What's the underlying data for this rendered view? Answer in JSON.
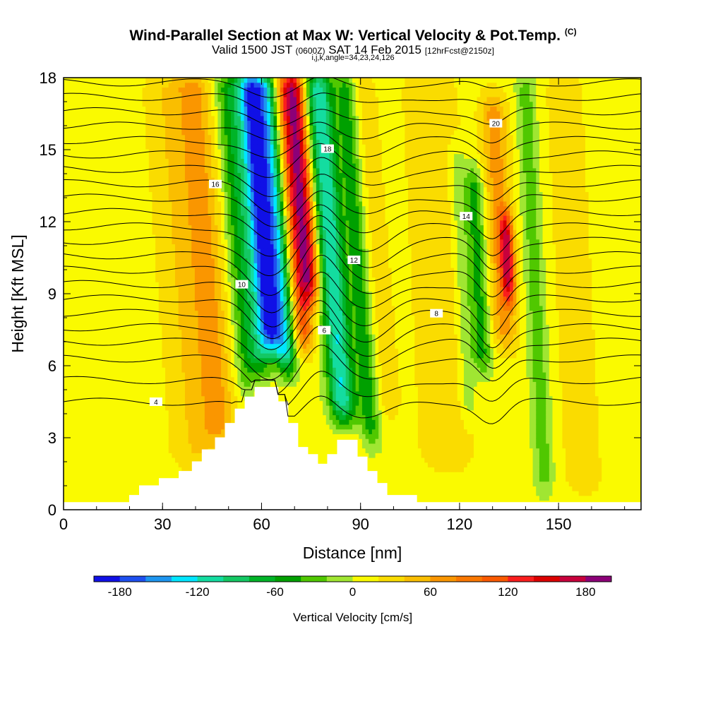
{
  "header": {
    "title": "Wind-Parallel Section at Max W: Vertical Velocity & Pot.Temp.",
    "title_tag": "(C)",
    "subtitle_a": "Valid 1500 JST",
    "subtitle_b": "(0600Z)",
    "subtitle_c": "SAT 14 Feb 2015",
    "subtitle_d": "[12hrFcst@2150z]",
    "line3": "i,j,k,angle=34,23,24,126"
  },
  "chart_data": {
    "type": "heatmap",
    "xlabel": "Distance [nm]",
    "ylabel": "Height [Kft MSL]",
    "xlim": [
      0,
      175
    ],
    "ylim": [
      0,
      18
    ],
    "x_ticks": [
      "0",
      "30",
      "60",
      "90",
      "120",
      "150"
    ],
    "y_ticks": [
      "0",
      "3",
      "6",
      "9",
      "12",
      "15",
      "18"
    ],
    "colorbar": {
      "label": "Vertical Velocity [cm/s]",
      "ticks": [
        "-180",
        "-120",
        "-60",
        "0",
        "60",
        "120",
        "180"
      ],
      "levels": [
        -200,
        -180,
        -160,
        -140,
        -120,
        -100,
        -80,
        -60,
        -40,
        -20,
        0,
        20,
        40,
        60,
        80,
        100,
        120,
        140,
        160,
        180,
        200
      ],
      "colors": [
        "#1010e6",
        "#1e50f0",
        "#1e96f0",
        "#00e6ff",
        "#14dca0",
        "#14c864",
        "#00b428",
        "#00a000",
        "#50c800",
        "#a0e632",
        "#fafa00",
        "#fadc00",
        "#fabe00",
        "#fa9600",
        "#fa7800",
        "#fa5a00",
        "#fa1e1e",
        "#dc0000",
        "#c8003c",
        "#8c0078"
      ]
    },
    "background_w": 10,
    "bands": [
      {
        "x": 6,
        "half_width": 4,
        "z0": 3,
        "z1": 18,
        "w": -10
      },
      {
        "x": 36,
        "half_width": 7,
        "z0": 1,
        "z1": 18,
        "w": 30
      },
      {
        "x": 44,
        "half_width": 5,
        "z0": 2,
        "z1": 18,
        "w": 55
      },
      {
        "x": 53,
        "half_width": 3,
        "z0": 4,
        "z1": 18,
        "w": -35
      },
      {
        "x": 58,
        "half_width": 4,
        "z0": 5,
        "z1": 18,
        "w": -95
      },
      {
        "x": 62,
        "half_width": 3,
        "z0": 6,
        "z1": 18,
        "w": -170
      },
      {
        "x": 66,
        "half_width": 3,
        "z0": 5,
        "z1": 18,
        "w": -120
      },
      {
        "x": 72,
        "half_width": 3,
        "z0": 6,
        "z1": 18,
        "w": 100
      },
      {
        "x": 75,
        "half_width": 3,
        "z0": 8,
        "z1": 18,
        "w": 130
      },
      {
        "x": 82,
        "half_width": 4,
        "z0": 3,
        "z1": 18,
        "w": -130
      },
      {
        "x": 90,
        "half_width": 3,
        "z0": 2,
        "z1": 18,
        "w": -60
      },
      {
        "x": 96,
        "half_width": 4,
        "z0": 3,
        "z1": 18,
        "w": 20
      },
      {
        "x": 114,
        "half_width": 8,
        "z0": 1,
        "z1": 18,
        "w": 30
      },
      {
        "x": 121,
        "half_width": 3,
        "z0": 3,
        "z1": 15,
        "w": -30
      },
      {
        "x": 126,
        "half_width": 3,
        "z0": 5,
        "z1": 14,
        "w": -60
      },
      {
        "x": 133,
        "half_width": 4,
        "z0": 6,
        "z1": 17,
        "w": 60
      },
      {
        "x": 135,
        "half_width": 2,
        "z0": 8,
        "z1": 12,
        "w": 120
      },
      {
        "x": 143,
        "half_width": 3,
        "z0": 0,
        "z1": 18,
        "w": -40
      },
      {
        "x": 155,
        "half_width": 6,
        "z0": 0,
        "z1": 18,
        "w": 25
      },
      {
        "x": 165,
        "half_width": 4,
        "z0": 1,
        "z1": 18,
        "w": -10
      }
    ],
    "terrain": [
      [
        0,
        0.3
      ],
      [
        20,
        0.3
      ],
      [
        20,
        0.6
      ],
      [
        23,
        0.6
      ],
      [
        23,
        1
      ],
      [
        29,
        1
      ],
      [
        29,
        1.3
      ],
      [
        35,
        1.3
      ],
      [
        35,
        1.6
      ],
      [
        39,
        1.6
      ],
      [
        39,
        2
      ],
      [
        42,
        2
      ],
      [
        42,
        2.5
      ],
      [
        46,
        2.5
      ],
      [
        46,
        3
      ],
      [
        49,
        3
      ],
      [
        49,
        3.6
      ],
      [
        52,
        3.6
      ],
      [
        52,
        4.2
      ],
      [
        55,
        4.2
      ],
      [
        55,
        4.7
      ],
      [
        58,
        4.7
      ],
      [
        58,
        5.1
      ],
      [
        65,
        5.1
      ],
      [
        65,
        4.5
      ],
      [
        68,
        4.5
      ],
      [
        68,
        3.6
      ],
      [
        71,
        3.6
      ],
      [
        71,
        2.6
      ],
      [
        74,
        2.6
      ],
      [
        74,
        2.3
      ],
      [
        77,
        2.3
      ],
      [
        77,
        1.9
      ],
      [
        80,
        1.9
      ],
      [
        80,
        2.3
      ],
      [
        83,
        2.3
      ],
      [
        83,
        2.9
      ],
      [
        89,
        2.9
      ],
      [
        89,
        2.2
      ],
      [
        92,
        2.2
      ],
      [
        92,
        1.6
      ],
      [
        95,
        1.6
      ],
      [
        95,
        1.1
      ],
      [
        98,
        1.1
      ],
      [
        98,
        0.6
      ],
      [
        107,
        0.6
      ],
      [
        107,
        0.3
      ],
      [
        175,
        0.3
      ]
    ],
    "theta_lines": [
      {
        "z0": 4.5,
        "label": "4"
      },
      {
        "z0": 5.4,
        "label": ""
      },
      {
        "z0": 6.3,
        "label": ""
      },
      {
        "z0": 7.0,
        "label": "6"
      },
      {
        "z0": 7.6,
        "label": ""
      },
      {
        "z0": 8.2,
        "label": "8"
      },
      {
        "z0": 8.8,
        "label": ""
      },
      {
        "z0": 9.4,
        "label": ""
      },
      {
        "z0": 10.0,
        "label": "10"
      },
      {
        "z0": 10.6,
        "label": ""
      },
      {
        "z0": 11.2,
        "label": "12"
      },
      {
        "z0": 11.8,
        "label": ""
      },
      {
        "z0": 12.4,
        "label": "14"
      },
      {
        "z0": 13.0,
        "label": ""
      },
      {
        "z0": 13.6,
        "label": "16"
      },
      {
        "z0": 14.2,
        "label": ""
      },
      {
        "z0": 14.8,
        "label": "18"
      },
      {
        "z0": 15.4,
        "label": ""
      },
      {
        "z0": 16.0,
        "label": ""
      },
      {
        "z0": 16.6,
        "label": "20"
      },
      {
        "z0": 17.2,
        "label": ""
      },
      {
        "z0": 17.8,
        "label": ""
      }
    ]
  }
}
